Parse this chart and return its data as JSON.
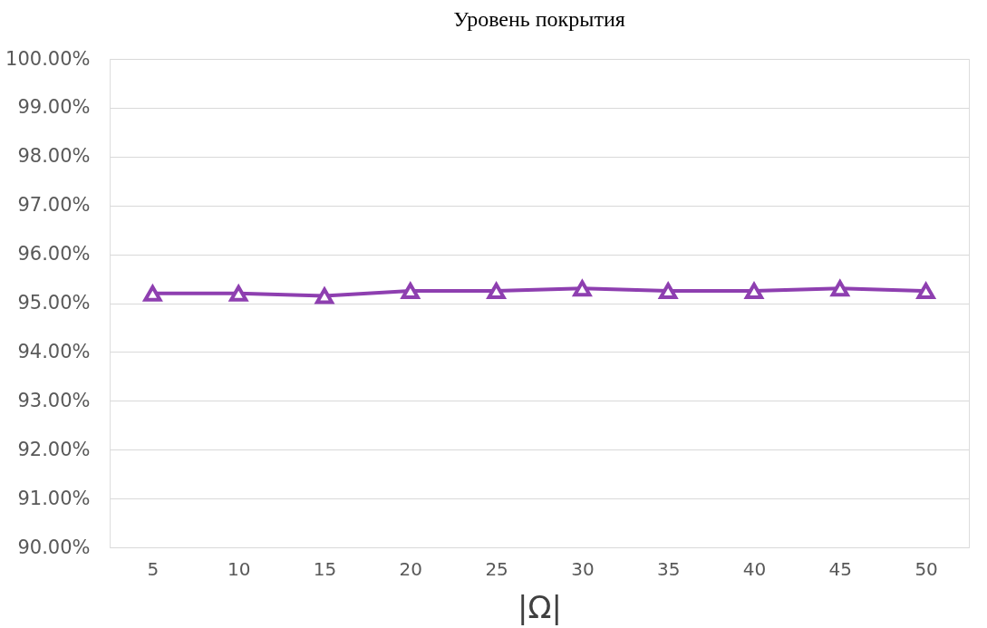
{
  "chart_data": {
    "type": "line",
    "title": "Уровень покрытия",
    "xlabel": "|Ω|",
    "categories": [
      "5",
      "10",
      "15",
      "20",
      "25",
      "30",
      "35",
      "40",
      "45",
      "50"
    ],
    "series": [
      {
        "color": "#8e3fb0",
        "values": [
          95.2,
          95.2,
          95.15,
          95.25,
          95.25,
          95.3,
          95.25,
          95.25,
          95.3,
          95.25
        ]
      }
    ],
    "ylim": [
      90,
      100
    ],
    "yticks": [
      {
        "value": 90,
        "label": "90.00%"
      },
      {
        "value": 91,
        "label": "91.00%"
      },
      {
        "value": 92,
        "label": "92.00%"
      },
      {
        "value": 93,
        "label": "93.00%"
      },
      {
        "value": 94,
        "label": "94.00%"
      },
      {
        "value": 95,
        "label": "95.00%"
      },
      {
        "value": 96,
        "label": "96.00%"
      },
      {
        "value": 97,
        "label": "97.00%"
      },
      {
        "value": 98,
        "label": "98.00%"
      },
      {
        "value": 99,
        "label": "99.00%"
      },
      {
        "value": 100,
        "label": "100.00%"
      }
    ],
    "grid": "y",
    "marker": "triangle",
    "line_style": "solid"
  }
}
